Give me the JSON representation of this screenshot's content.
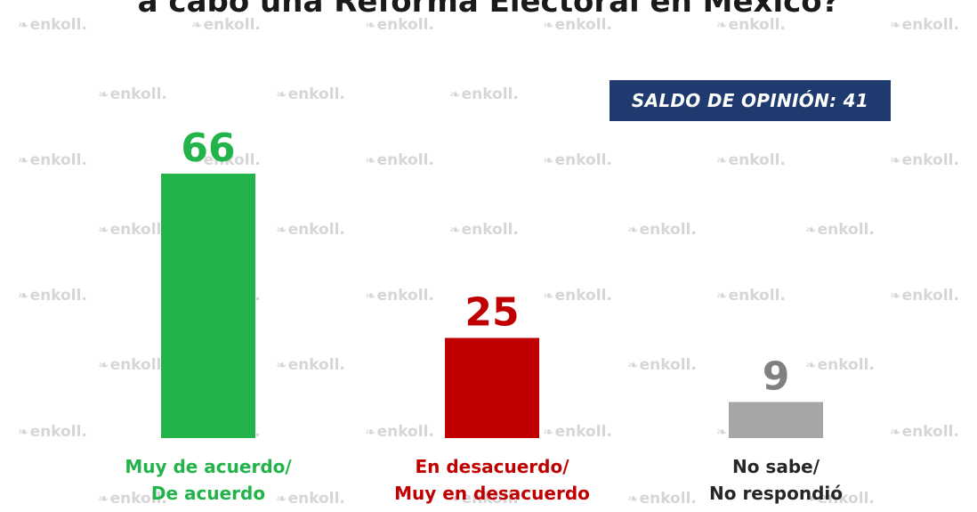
{
  "title": "a cabo una Reforma Electoral en México?",
  "badge": {
    "label": "SALDO DE OPINIÓN: 41"
  },
  "watermark": {
    "text": "enkoll."
  },
  "colors": {
    "agree": "#22b34b",
    "disagree": "#c00000",
    "unknown": "#a6a6a6",
    "badge": "#1f3a6e"
  },
  "chart_data": {
    "type": "bar",
    "categories": [
      [
        "Muy de acuerdo/",
        "De acuerdo"
      ],
      [
        "En desacuerdo/",
        "Muy en desacuerdo"
      ],
      [
        "No sabe/",
        "No respondió"
      ]
    ],
    "values": [
      66,
      25,
      9
    ],
    "colors": [
      "#22b34b",
      "#c00000",
      "#a6a6a6"
    ],
    "label_colors": [
      "#22b34b",
      "#c00000",
      "#808080"
    ],
    "ylim": [
      0,
      66
    ],
    "grid": false,
    "xlabel": "",
    "ylabel": ""
  }
}
